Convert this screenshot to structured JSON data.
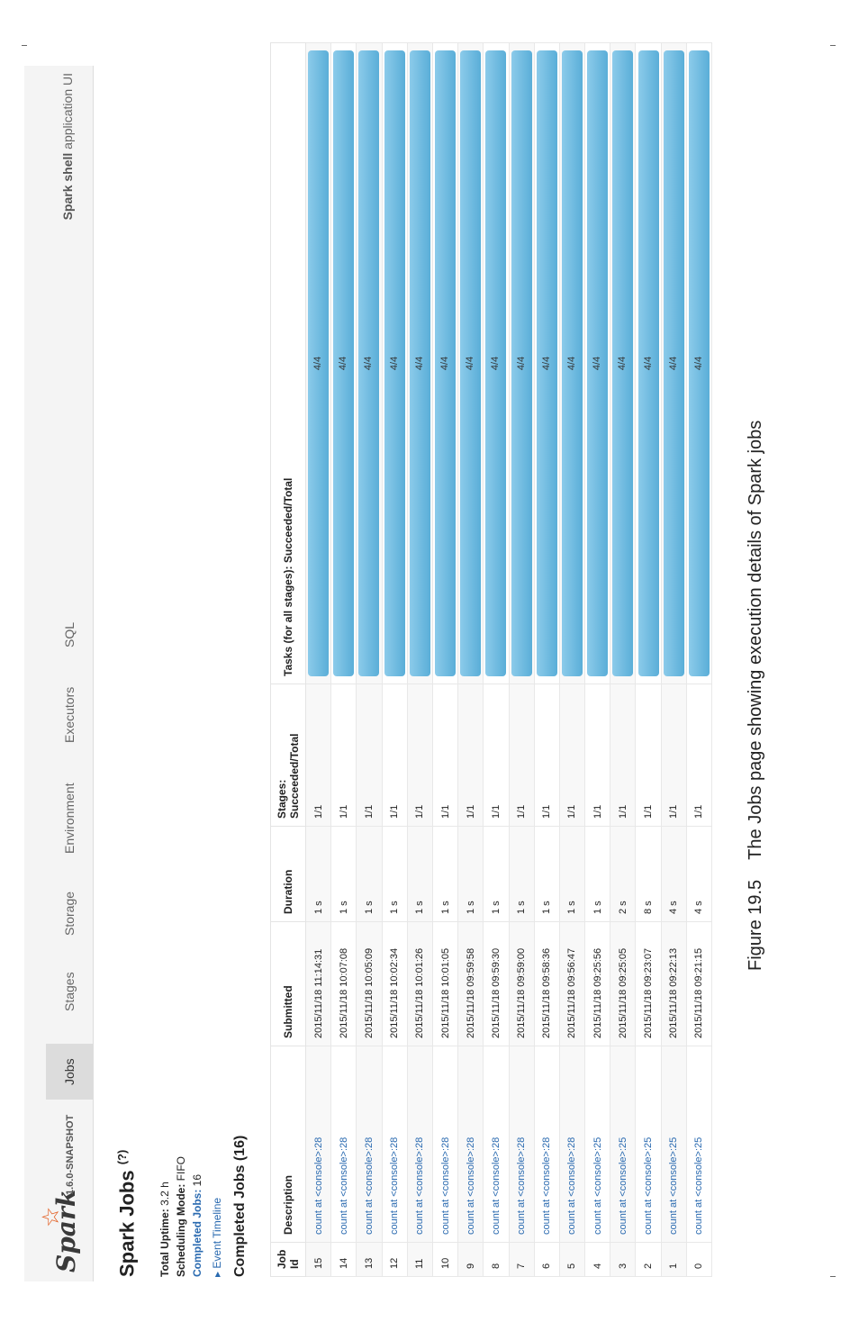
{
  "navbar": {
    "logo_text": "Spark",
    "version": "1.6.0-SNAPSHOT",
    "tabs": [
      "Jobs",
      "Stages",
      "Storage",
      "Environment",
      "Executors",
      "SQL"
    ],
    "active_tab": "Jobs",
    "app_title_bold": "Spark shell",
    "app_title_rest": " application UI"
  },
  "header": {
    "title": "Spark Jobs",
    "help": "(?)",
    "uptime_label": "Total Uptime:",
    "uptime_value": " 3.2 h",
    "mode_label": "Scheduling Mode:",
    "mode_value": " FIFO",
    "completed_label": "Completed Jobs:",
    "completed_value": " 16",
    "timeline": "▸ Event Timeline",
    "section_title": "Completed Jobs (16)"
  },
  "table": {
    "columns": [
      "Job Id",
      "Description",
      "Submitted",
      "Duration",
      "Stages: Succeeded/Total",
      "Tasks (for all stages): Succeeded/Total"
    ],
    "rows": [
      {
        "id": "15",
        "desc": "count at <console>:28",
        "submitted": "2015/11/18 11:14:31",
        "duration": "1 s",
        "stages": "1/1",
        "tasks": "4/4",
        "progress": 1.0
      },
      {
        "id": "14",
        "desc": "count at <console>:28",
        "submitted": "2015/11/18 10:07:08",
        "duration": "1 s",
        "stages": "1/1",
        "tasks": "4/4",
        "progress": 1.0
      },
      {
        "id": "13",
        "desc": "count at <console>:28",
        "submitted": "2015/11/18 10:05:09",
        "duration": "1 s",
        "stages": "1/1",
        "tasks": "4/4",
        "progress": 1.0
      },
      {
        "id": "12",
        "desc": "count at <console>:28",
        "submitted": "2015/11/18 10:02:34",
        "duration": "1 s",
        "stages": "1/1",
        "tasks": "4/4",
        "progress": 1.0
      },
      {
        "id": "11",
        "desc": "count at <console>:28",
        "submitted": "2015/11/18 10:01:26",
        "duration": "1 s",
        "stages": "1/1",
        "tasks": "4/4",
        "progress": 1.0
      },
      {
        "id": "10",
        "desc": "count at <console>:28",
        "submitted": "2015/11/18 10:01:05",
        "duration": "1 s",
        "stages": "1/1",
        "tasks": "4/4",
        "progress": 1.0
      },
      {
        "id": "9",
        "desc": "count at <console>:28",
        "submitted": "2015/11/18 09:59:58",
        "duration": "1 s",
        "stages": "1/1",
        "tasks": "4/4",
        "progress": 1.0
      },
      {
        "id": "8",
        "desc": "count at <console>:28",
        "submitted": "2015/11/18 09:59:30",
        "duration": "1 s",
        "stages": "1/1",
        "tasks": "4/4",
        "progress": 1.0
      },
      {
        "id": "7",
        "desc": "count at <console>:28",
        "submitted": "2015/11/18 09:59:00",
        "duration": "1 s",
        "stages": "1/1",
        "tasks": "4/4",
        "progress": 1.0
      },
      {
        "id": "6",
        "desc": "count at <console>:28",
        "submitted": "2015/11/18 09:58:36",
        "duration": "1 s",
        "stages": "1/1",
        "tasks": "4/4",
        "progress": 1.0
      },
      {
        "id": "5",
        "desc": "count at <console>:28",
        "submitted": "2015/11/18 09:56:47",
        "duration": "1 s",
        "stages": "1/1",
        "tasks": "4/4",
        "progress": 1.0
      },
      {
        "id": "4",
        "desc": "count at <console>:25",
        "submitted": "2015/11/18 09:25:56",
        "duration": "1 s",
        "stages": "1/1",
        "tasks": "4/4",
        "progress": 1.0
      },
      {
        "id": "3",
        "desc": "count at <console>:25",
        "submitted": "2015/11/18 09:25:05",
        "duration": "2 s",
        "stages": "1/1",
        "tasks": "4/4",
        "progress": 1.0
      },
      {
        "id": "2",
        "desc": "count at <console>:25",
        "submitted": "2015/11/18 09:23:07",
        "duration": "8 s",
        "stages": "1/1",
        "tasks": "4/4",
        "progress": 1.0
      },
      {
        "id": "1",
        "desc": "count at <console>:25",
        "submitted": "2015/11/18 09:22:13",
        "duration": "4 s",
        "stages": "1/1",
        "tasks": "4/4",
        "progress": 1.0
      },
      {
        "id": "0",
        "desc": "count at <console>:25",
        "submitted": "2015/11/18 09:21:15",
        "duration": "4 s",
        "stages": "1/1",
        "tasks": "4/4",
        "progress": 1.0
      }
    ]
  },
  "caption": {
    "number": "Figure 19.5",
    "text": "The Jobs page showing execution details of Spark jobs"
  },
  "colors": {
    "bar": "#6fb8df",
    "link": "#2a6ab0",
    "logo_star": "#e25a1c"
  }
}
